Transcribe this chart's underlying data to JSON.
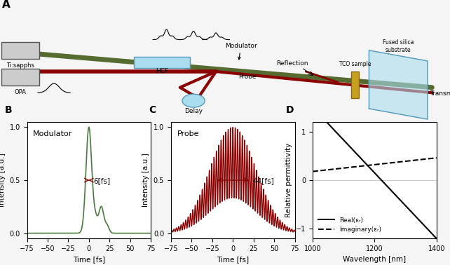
{
  "panel_B": {
    "label": "B",
    "title": "Modulator",
    "xlabel": "Time [fs]",
    "ylabel": "Intensity [a.u.]",
    "xlim": [
      -75,
      75
    ],
    "ylim": [
      -0.05,
      1.05
    ],
    "annotation": "6[fs]",
    "color_main": "#4a7a40",
    "color_arrow": "#8b0000",
    "yticks": [
      0,
      0.5,
      1
    ]
  },
  "panel_C": {
    "label": "C",
    "title": "Probe",
    "xlabel": "Time [fs]",
    "ylabel": "Intensity [a.u.]",
    "xlim": [
      -75,
      75
    ],
    "ylim": [
      -0.05,
      1.05
    ],
    "annotation": "44[fs]",
    "color_main": "#8b0000",
    "yticks": [
      0,
      0.5,
      1
    ]
  },
  "panel_D": {
    "label": "D",
    "xlabel": "Wavelength [nm]",
    "ylabel": "Relative permittivity",
    "xlim": [
      1000,
      1400
    ],
    "ylim": [
      -1.2,
      1.2
    ],
    "legend_real": "Real(εᵣ)",
    "legend_imag": "Imaginary(εᵣ)",
    "color_real": "#000000",
    "color_imag": "#000000",
    "xticks": [
      1000,
      1200,
      1400
    ],
    "yticks": [
      -1,
      0,
      1
    ]
  },
  "background_color": "#f5f5f5"
}
